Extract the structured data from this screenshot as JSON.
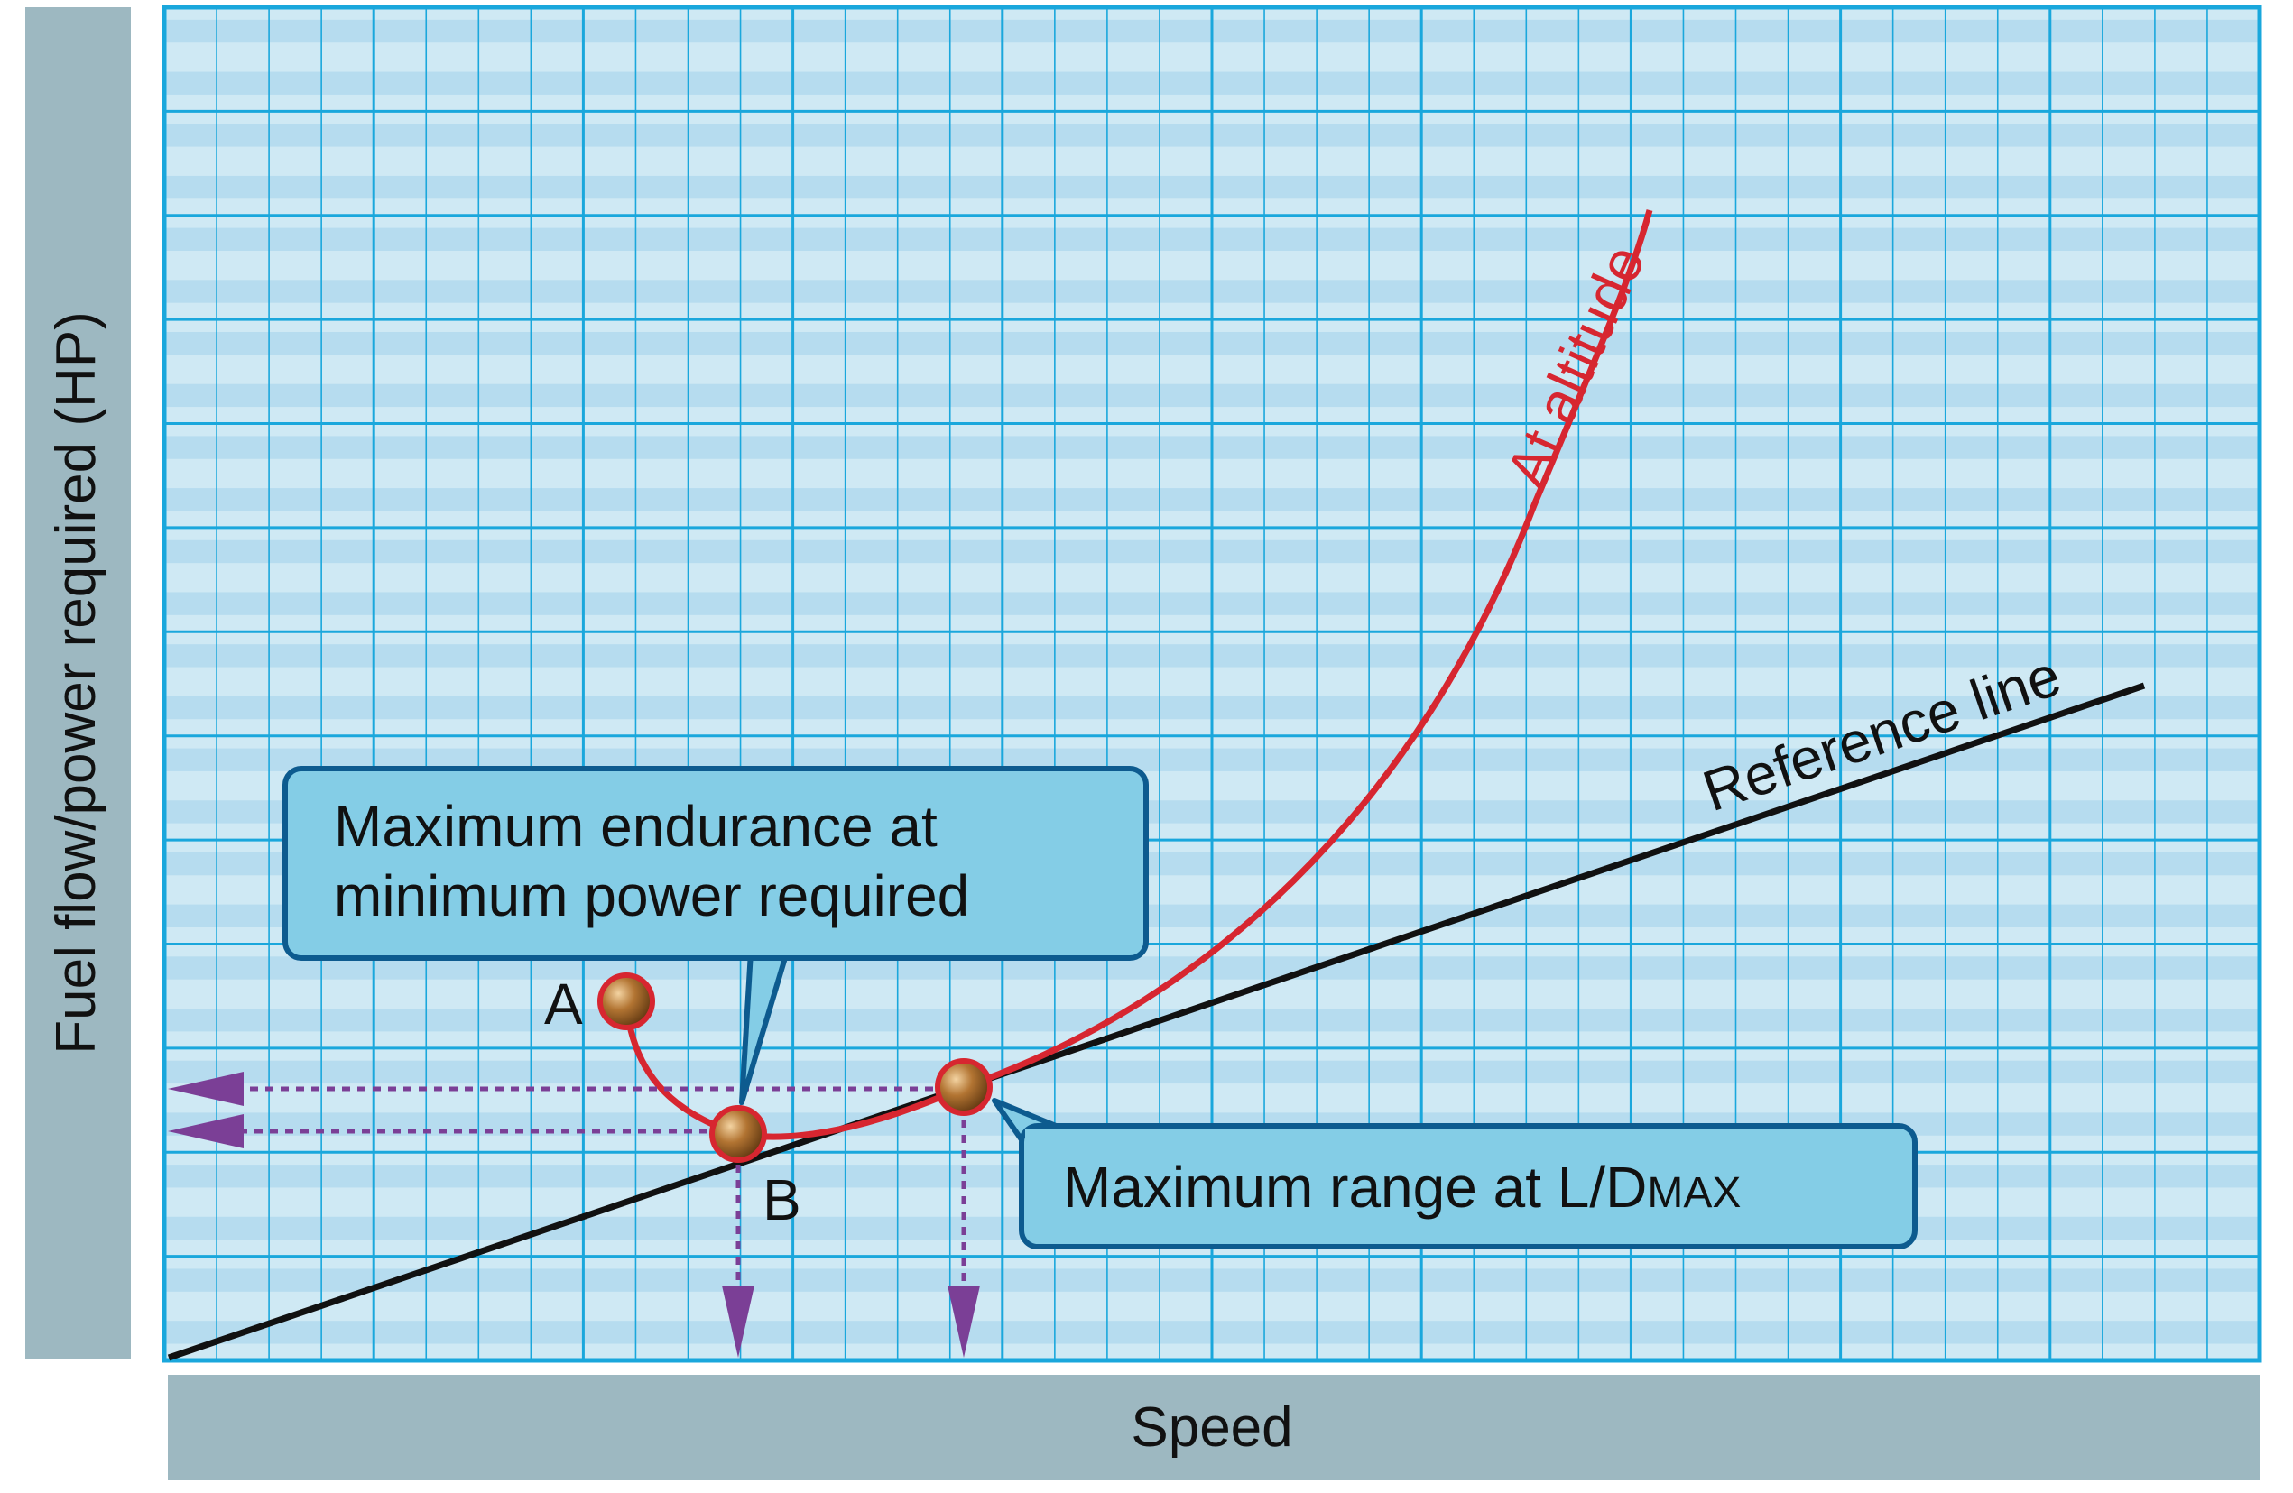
{
  "axes": {
    "x_label": "Speed",
    "y_label": "Fuel flow/power required (HP)"
  },
  "curves": {
    "altitude_label": "At altitude",
    "reference_label": "Reference line"
  },
  "callouts": {
    "endurance_line1": "Maximum endurance at",
    "endurance_line2": "minimum power required",
    "range_prefix": "Maximum range at L/D",
    "range_suffix": "MAX"
  },
  "points": {
    "a_label": "A",
    "b_label": "B"
  },
  "colors": {
    "grid_background": "#cfe9f4",
    "grid_band": "#b6dcef",
    "grid_line": "#1aa7dc",
    "axis_panel": "#9db8c1",
    "altitude_curve": "#d72630",
    "reference_line": "#111111",
    "guide_arrow": "#7b3f96",
    "callout_fill": "#84cde6",
    "callout_border": "#0d5b8f",
    "marker": "#a86a2c"
  }
}
